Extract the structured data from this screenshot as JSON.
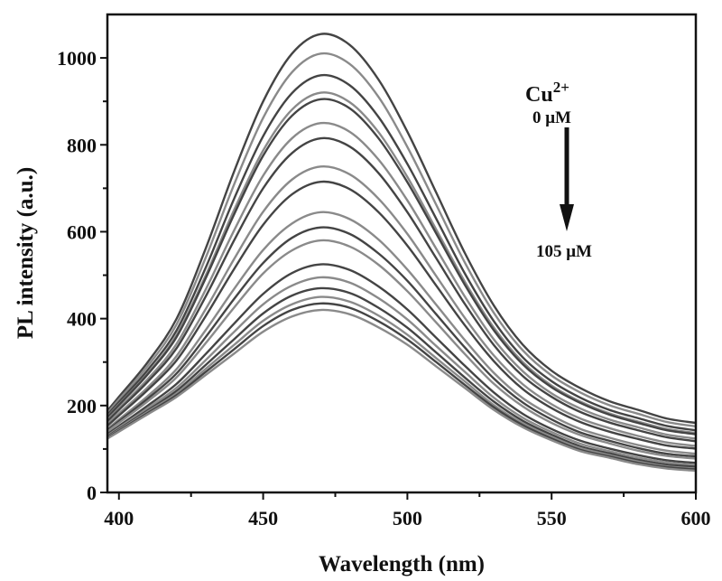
{
  "chart_data": {
    "type": "line",
    "title": "",
    "xlabel": "Wavelength (nm)",
    "ylabel": "PL intensity (a.u.)",
    "xlim": [
      396,
      600
    ],
    "ylim": [
      0,
      1100
    ],
    "xticks": [
      400,
      450,
      500,
      550,
      600
    ],
    "yticks": [
      0,
      200,
      400,
      600,
      800,
      1000
    ],
    "grid": false,
    "annotation": {
      "ion": "Cu",
      "ion_charge": "2+",
      "start_label": "0 μM",
      "end_label": "105 μM",
      "arrow_direction": "down"
    },
    "colors": [
      "#444444",
      "#8a8a8a"
    ],
    "x": [
      400,
      410,
      420,
      430,
      440,
      450,
      460,
      470,
      480,
      490,
      500,
      510,
      520,
      530,
      540,
      550,
      560,
      570,
      580,
      590,
      600
    ],
    "series": [
      {
        "values": [
          220,
          300,
          400,
          560,
          740,
          900,
          1010,
          1055,
          1030,
          950,
          830,
          690,
          550,
          430,
          340,
          280,
          240,
          210,
          190,
          170,
          160
        ]
      },
      {
        "values": [
          214,
          291,
          387,
          539,
          710,
          862,
          967,
          1010,
          986,
          910,
          795,
          662,
          528,
          413,
          327,
          269,
          230,
          201,
          181,
          162,
          152
        ]
      },
      {
        "values": [
          208,
          282,
          373,
          516,
          677,
          820,
          919,
          960,
          937,
          864,
          756,
          630,
          503,
          394,
          311,
          256,
          218,
          190,
          171,
          153,
          143
        ]
      },
      {
        "values": [
          203,
          274,
          362,
          498,
          651,
          787,
          881,
          920,
          898,
          829,
          726,
          605,
          484,
          379,
          300,
          246,
          209,
          182,
          163,
          146,
          137
        ]
      },
      {
        "values": [
          201,
          272,
          358,
          492,
          641,
          775,
          867,
          905,
          884,
          815,
          714,
          596,
          477,
          373,
          295,
          242,
          206,
          179,
          160,
          143,
          134
        ]
      },
      {
        "values": [
          194,
          261,
          342,
          466,
          604,
          729,
          815,
          850,
          830,
          766,
          672,
          561,
          450,
          352,
          279,
          228,
          193,
          168,
          150,
          133,
          124
        ]
      },
      {
        "values": [
          190,
          255,
          332,
          450,
          581,
          700,
          781,
          815,
          796,
          735,
          645,
          539,
          433,
          339,
          268,
          220,
          185,
          161,
          143,
          127,
          118
        ]
      },
      {
        "values": [
          182,
          242,
          314,
          421,
          538,
          646,
          720,
          750,
          732,
          676,
          595,
          498,
          401,
          315,
          249,
          203,
          170,
          148,
          130,
          115,
          107
        ]
      },
      {
        "values": [
          177,
          236,
          304,
          405,
          515,
          616,
          686,
          715,
          698,
          645,
          568,
          476,
          384,
          302,
          238,
          194,
          162,
          140,
          123,
          108,
          101
        ]
      },
      {
        "values": [
          168,
          222,
          284,
          373,
          469,
          558,
          619,
          645,
          629,
          582,
          513,
          432,
          350,
          275,
          217,
          177,
          146,
          126,
          109,
          96,
          89
        ]
      },
      {
        "values": [
          164,
          216,
          274,
          357,
          446,
          528,
          586,
          610,
          595,
          550,
          487,
          410,
          333,
          262,
          207,
          168,
          138,
          119,
          102,
          89,
          83
        ]
      },
      {
        "values": [
          160,
          210,
          265,
          343,
          426,
          504,
          557,
          580,
          566,
          524,
          463,
          391,
          318,
          250,
          198,
          160,
          132,
          113,
          96,
          84,
          78
        ]
      },
      {
        "values": [
          153,
          200,
          250,
          318,
          389,
          457,
          505,
          525,
          512,
          474,
          421,
          356,
          291,
          230,
          181,
          146,
          119,
          101,
          86,
          74,
          68
        ]
      },
      {
        "values": [
          149,
          194,
          241,
          304,
          370,
          433,
          476,
          495,
          483,
          447,
          398,
          337,
          277,
          218,
          172,
          139,
          112,
          95,
          80,
          69,
          63
        ]
      },
      {
        "values": [
          146,
          189,
          234,
          293,
          353,
          412,
          453,
          470,
          459,
          425,
          379,
          322,
          264,
          209,
          165,
          133,
          106,
          90,
          75,
          64,
          59
        ]
      },
      {
        "values": [
          144,
          186,
          228,
          284,
          340,
          395,
          433,
          450,
          439,
          407,
          363,
          309,
          255,
          201,
          159,
          128,
          102,
          86,
          71,
          60,
          55
        ]
      },
      {
        "values": [
          142,
          183,
          224,
          277,
          330,
          383,
          420,
          435,
          425,
          394,
          352,
          300,
          247,
          196,
          155,
          124,
          98,
          83,
          68,
          58,
          53
        ]
      },
      {
        "values": [
          140,
          180,
          220,
          270,
          320,
          370,
          405,
          420,
          410,
          380,
          340,
          290,
          240,
          190,
          150,
          120,
          95,
          80,
          65,
          55,
          50
        ]
      }
    ]
  }
}
